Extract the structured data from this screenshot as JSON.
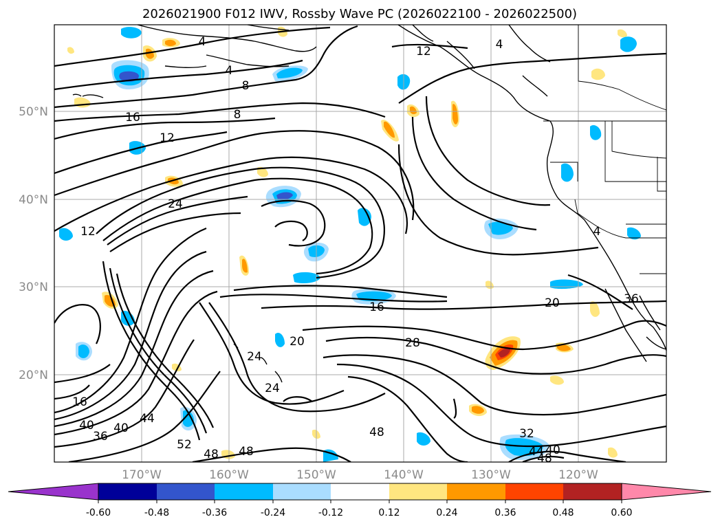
{
  "title": "2026021900 F012 IWV, Rossby Wave PC (2026022100 - 2026022500)",
  "lat_labels": [
    {
      "text": "50°N",
      "lat": 50
    },
    {
      "text": "40°N",
      "lat": 40
    },
    {
      "text": "30°N",
      "lat": 30
    },
    {
      "text": "20°N",
      "lat": 20
    }
  ],
  "lon_labels": [
    {
      "text": "170°W",
      "lon": -170
    },
    {
      "text": "160°W",
      "lon": -160
    },
    {
      "text": "150°W",
      "lon": -150
    },
    {
      "text": "140°W",
      "lon": -140
    },
    {
      "text": "130°W",
      "lon": -130
    },
    {
      "text": "120°W",
      "lon": -120
    }
  ],
  "map_extent": {
    "lon_min": -180,
    "lon_max": -110,
    "lat_min": 10,
    "lat_max": 60
  },
  "colorbar": {
    "ticks": [
      "-0.60",
      "-0.48",
      "-0.36",
      "-0.24",
      "-0.12",
      "0.12",
      "0.24",
      "0.36",
      "0.48",
      "0.60"
    ],
    "colors": [
      "#9933cc",
      "#000099",
      "#3355cc",
      "#00bbff",
      "#aaddff",
      "#ffffff",
      "#ffe680",
      "#ff9900",
      "#ff4400",
      "#b22222",
      "#ff88aa"
    ],
    "extend": "both"
  },
  "contour_labels": [
    "4",
    "4",
    "12",
    "4",
    "8",
    "8",
    "16",
    "12",
    "24",
    "12",
    "16",
    "20",
    "28",
    "20",
    "24",
    "24",
    "16",
    "40",
    "36",
    "40",
    "44",
    "52",
    "48",
    "48",
    "48",
    "32",
    "44",
    "40",
    "48",
    "36",
    "4"
  ]
}
